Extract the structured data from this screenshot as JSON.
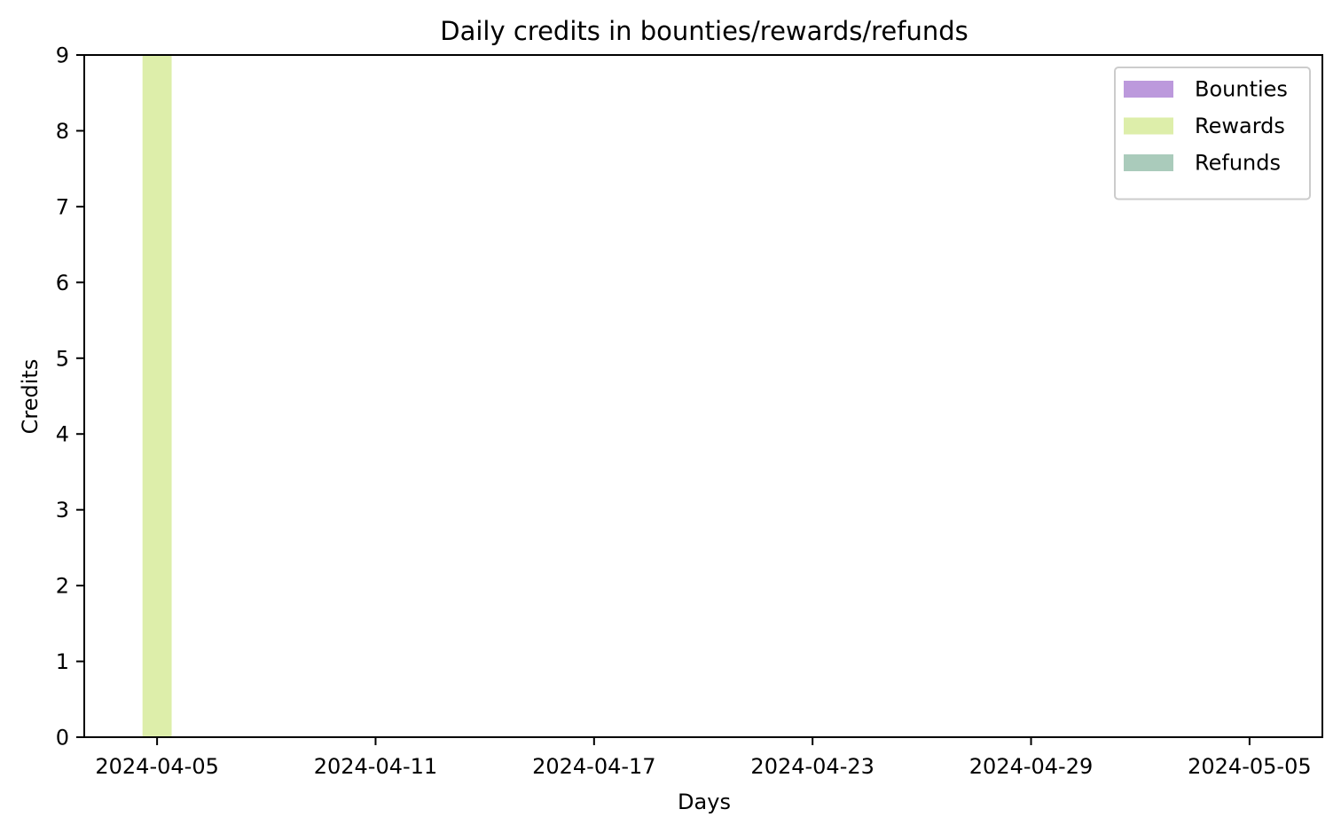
{
  "chart_data": {
    "type": "bar",
    "title": "Daily credits in bounties/rewards/refunds",
    "xlabel": "Days",
    "ylabel": "Credits",
    "x_axis": "date",
    "xlim": [
      "2024-04-03",
      "2024-05-07"
    ],
    "ylim": [
      0,
      9
    ],
    "x_ticks": [
      "2024-04-05",
      "2024-04-11",
      "2024-04-17",
      "2024-04-23",
      "2024-04-29",
      "2024-05-05"
    ],
    "y_ticks": [
      0,
      1,
      2,
      3,
      4,
      5,
      6,
      7,
      8,
      9
    ],
    "grid": false,
    "legend_position": "top-right",
    "series": [
      {
        "name": "Bounties",
        "color": "#bc99dc",
        "points": []
      },
      {
        "name": "Rewards",
        "color": "#ddeeaa",
        "points": [
          {
            "x": "2024-04-05",
            "y": 9
          }
        ]
      },
      {
        "name": "Refunds",
        "color": "#aacbbb",
        "points": []
      }
    ]
  }
}
